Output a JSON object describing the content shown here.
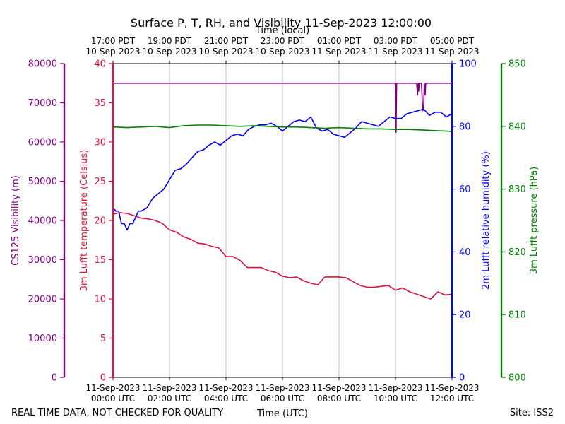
{
  "chart_data": {
    "type": "line",
    "title": "Surface P, T, RH, and Visibility 11-Sep-2023 12:00:00",
    "top_axis_label": "Time (local)",
    "bottom_axis_label": "Time (UTC)",
    "footer_left": "REAL TIME DATA, NOT CHECKED FOR QUALITY",
    "footer_right": "Site: ISS2",
    "x_range_hours_utc": [
      0,
      12
    ],
    "bottom_ticks": [
      {
        "h": 0,
        "l1": "11-Sep-2023",
        "l2": "00:00 UTC"
      },
      {
        "h": 2,
        "l1": "11-Sep-2023",
        "l2": "02:00 UTC"
      },
      {
        "h": 4,
        "l1": "11-Sep-2023",
        "l2": "04:00 UTC"
      },
      {
        "h": 6,
        "l1": "11-Sep-2023",
        "l2": "06:00 UTC"
      },
      {
        "h": 8,
        "l1": "11-Sep-2023",
        "l2": "08:00 UTC"
      },
      {
        "h": 10,
        "l1": "11-Sep-2023",
        "l2": "10:00 UTC"
      },
      {
        "h": 12,
        "l1": "11-Sep-2023",
        "l2": "12:00 UTC"
      }
    ],
    "top_ticks": [
      {
        "h": 0,
        "l1": "17:00 PDT",
        "l2": "10-Sep-2023"
      },
      {
        "h": 2,
        "l1": "19:00 PDT",
        "l2": "10-Sep-2023"
      },
      {
        "h": 4,
        "l1": "21:00 PDT",
        "l2": "10-Sep-2023"
      },
      {
        "h": 6,
        "l1": "23:00 PDT",
        "l2": "10-Sep-2023"
      },
      {
        "h": 8,
        "l1": "01:00 PDT",
        "l2": "11-Sep-2023"
      },
      {
        "h": 10,
        "l1": "03:00 PDT",
        "l2": "11-Sep-2023"
      },
      {
        "h": 12,
        "l1": "05:00 PDT",
        "l2": "11-Sep-2023"
      }
    ],
    "axes": {
      "visibility": {
        "label": "CS125 Visibility (m)",
        "color": "#800080",
        "ylim": [
          0,
          80000
        ],
        "ticks": [
          0,
          10000,
          20000,
          30000,
          40000,
          50000,
          60000,
          70000,
          80000
        ]
      },
      "temperature": {
        "label": "3m Lufft temperature (Celsius)",
        "color": "#dc143c",
        "ylim": [
          0,
          40
        ],
        "ticks": [
          0,
          5,
          10,
          15,
          20,
          25,
          30,
          35,
          40
        ]
      },
      "humidity": {
        "label": "2m Lufft relative humidity (%)",
        "color": "#0000ff",
        "ylim": [
          0,
          100
        ],
        "ticks": [
          0,
          20,
          40,
          60,
          80,
          100
        ]
      },
      "pressure": {
        "label": "3m Lufft pressure (hPa)",
        "color": "#008000",
        "ylim": [
          800,
          850
        ],
        "ticks": [
          800,
          810,
          820,
          830,
          840,
          850
        ]
      }
    },
    "grid": "vertical",
    "series": [
      {
        "key": "visibility",
        "color": "#800080",
        "x": [
          0,
          0.5,
          1,
          2,
          4,
          6,
          8,
          10.0,
          10.02,
          10.04,
          10.06,
          10.5,
          10.75,
          10.78,
          10.8,
          10.82,
          10.84,
          10.86,
          10.88,
          10.92,
          10.95,
          10.97,
          11.0,
          11.02,
          11.05,
          11.07,
          11.1,
          11.15,
          11.5,
          12
        ],
        "values": [
          75000,
          75000,
          75000,
          75000,
          75000,
          75000,
          75000,
          75000,
          62500,
          75000,
          75000,
          75000,
          75000,
          72000,
          75000,
          73000,
          75000,
          75000,
          75000,
          75000,
          70000,
          68000,
          69500,
          75000,
          72000,
          75000,
          75000,
          75000,
          75000,
          75000
        ]
      },
      {
        "key": "temperature",
        "color": "#dc143c",
        "x": [
          0,
          0.25,
          0.5,
          0.75,
          1.0,
          1.25,
          1.5,
          1.75,
          2.0,
          2.25,
          2.5,
          2.75,
          3.0,
          3.25,
          3.5,
          3.75,
          4.0,
          4.25,
          4.5,
          4.75,
          5.0,
          5.25,
          5.5,
          5.75,
          6.0,
          6.25,
          6.5,
          6.75,
          7.0,
          7.25,
          7.5,
          7.75,
          8.0,
          8.25,
          8.5,
          8.75,
          9.0,
          9.25,
          9.5,
          9.75,
          10.0,
          10.25,
          10.5,
          10.75,
          11.0,
          11.25,
          11.5,
          11.75,
          12.0
        ],
        "values": [
          20.8,
          21.0,
          20.9,
          20.6,
          20.3,
          20.2,
          20.0,
          19.6,
          18.8,
          18.5,
          17.9,
          17.6,
          17.1,
          17.0,
          16.7,
          16.5,
          15.4,
          15.4,
          14.9,
          14.0,
          14.0,
          14.0,
          13.6,
          13.4,
          12.9,
          12.7,
          12.8,
          12.3,
          12.0,
          11.8,
          12.8,
          12.8,
          12.8,
          12.7,
          12.2,
          11.7,
          11.5,
          11.5,
          11.6,
          11.7,
          11.1,
          11.4,
          10.9,
          10.6,
          10.3,
          10.0,
          10.9,
          10.5,
          10.6
        ]
      },
      {
        "key": "humidity",
        "color": "#0000ff",
        "x": [
          0,
          0.1,
          0.2,
          0.3,
          0.4,
          0.5,
          0.6,
          0.7,
          0.8,
          0.9,
          1.0,
          1.2,
          1.4,
          1.6,
          1.8,
          2.0,
          2.2,
          2.4,
          2.6,
          2.8,
          3.0,
          3.2,
          3.4,
          3.6,
          3.8,
          4.0,
          4.2,
          4.4,
          4.6,
          4.8,
          5.0,
          5.2,
          5.4,
          5.6,
          5.8,
          6.0,
          6.2,
          6.4,
          6.6,
          6.8,
          7.0,
          7.2,
          7.4,
          7.6,
          7.8,
          8.0,
          8.2,
          8.4,
          8.6,
          8.8,
          9.0,
          9.2,
          9.4,
          9.6,
          9.8,
          10.0,
          10.2,
          10.4,
          10.6,
          10.8,
          11.0,
          11.2,
          11.4,
          11.6,
          11.8,
          12.0
        ],
        "values": [
          54,
          53,
          53,
          49,
          49,
          47,
          49,
          49,
          51,
          53,
          53,
          54,
          57,
          58.5,
          60,
          63,
          66,
          66.5,
          68,
          70,
          72,
          72.5,
          74,
          75,
          74,
          75.5,
          77,
          77.5,
          77,
          79,
          80,
          80.5,
          80.5,
          81,
          80,
          78.5,
          80,
          81.5,
          82,
          81.5,
          83,
          79.5,
          78.5,
          79,
          77.5,
          77,
          76.5,
          78,
          79.5,
          81.5,
          81,
          80.5,
          80,
          81.5,
          83,
          82.5,
          82.5,
          84,
          84.5,
          85,
          85.5,
          83.5,
          84.5,
          84.5,
          83,
          84
        ]
      },
      {
        "key": "pressure",
        "color": "#008000",
        "x": [
          0,
          0.5,
          1.0,
          1.5,
          2.0,
          2.5,
          3.0,
          3.5,
          4.0,
          4.5,
          5.0,
          5.5,
          6.0,
          6.5,
          7.0,
          7.5,
          8.0,
          8.5,
          9.0,
          9.5,
          10.0,
          10.5,
          11.0,
          11.5,
          12.0
        ],
        "values": [
          839.9,
          839.8,
          839.9,
          840.0,
          839.8,
          840.1,
          840.2,
          840.2,
          840.1,
          840.0,
          840.1,
          840.0,
          839.9,
          839.9,
          839.8,
          839.7,
          839.8,
          839.7,
          839.6,
          839.6,
          839.5,
          839.5,
          839.4,
          839.3,
          839.2
        ]
      }
    ]
  }
}
